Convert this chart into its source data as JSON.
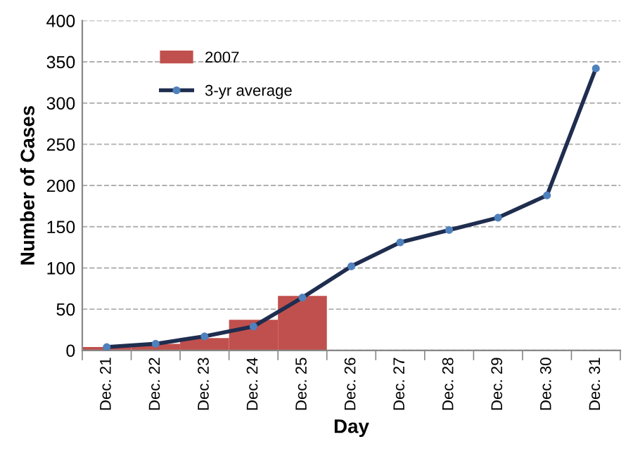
{
  "chart_data": {
    "type": "bar",
    "xlabel": "Day",
    "ylabel": "Number of Cases",
    "categories": [
      "Dec. 21",
      "Dec. 22",
      "Dec. 23",
      "Dec. 24",
      "Dec. 25",
      "Dec. 26",
      "Dec. 27",
      "Dec. 28",
      "Dec. 29",
      "Dec. 30",
      "Dec. 31"
    ],
    "series": [
      {
        "name": "2007",
        "color": "#c0504d",
        "values": [
          4,
          8,
          15,
          37,
          66,
          null,
          null,
          null,
          null,
          null,
          null
        ]
      },
      {
        "name": "3-yr average",
        "type": "line",
        "color": "#1f2d4f",
        "marker": "circle",
        "values": [
          4,
          8,
          17,
          29,
          64,
          102,
          131,
          146,
          161,
          188,
          342
        ]
      }
    ],
    "ylim": [
      0,
      400
    ],
    "yticks": [
      0,
      50,
      100,
      150,
      200,
      250,
      300,
      350,
      400
    ],
    "grid": "y",
    "legend": "top left"
  }
}
